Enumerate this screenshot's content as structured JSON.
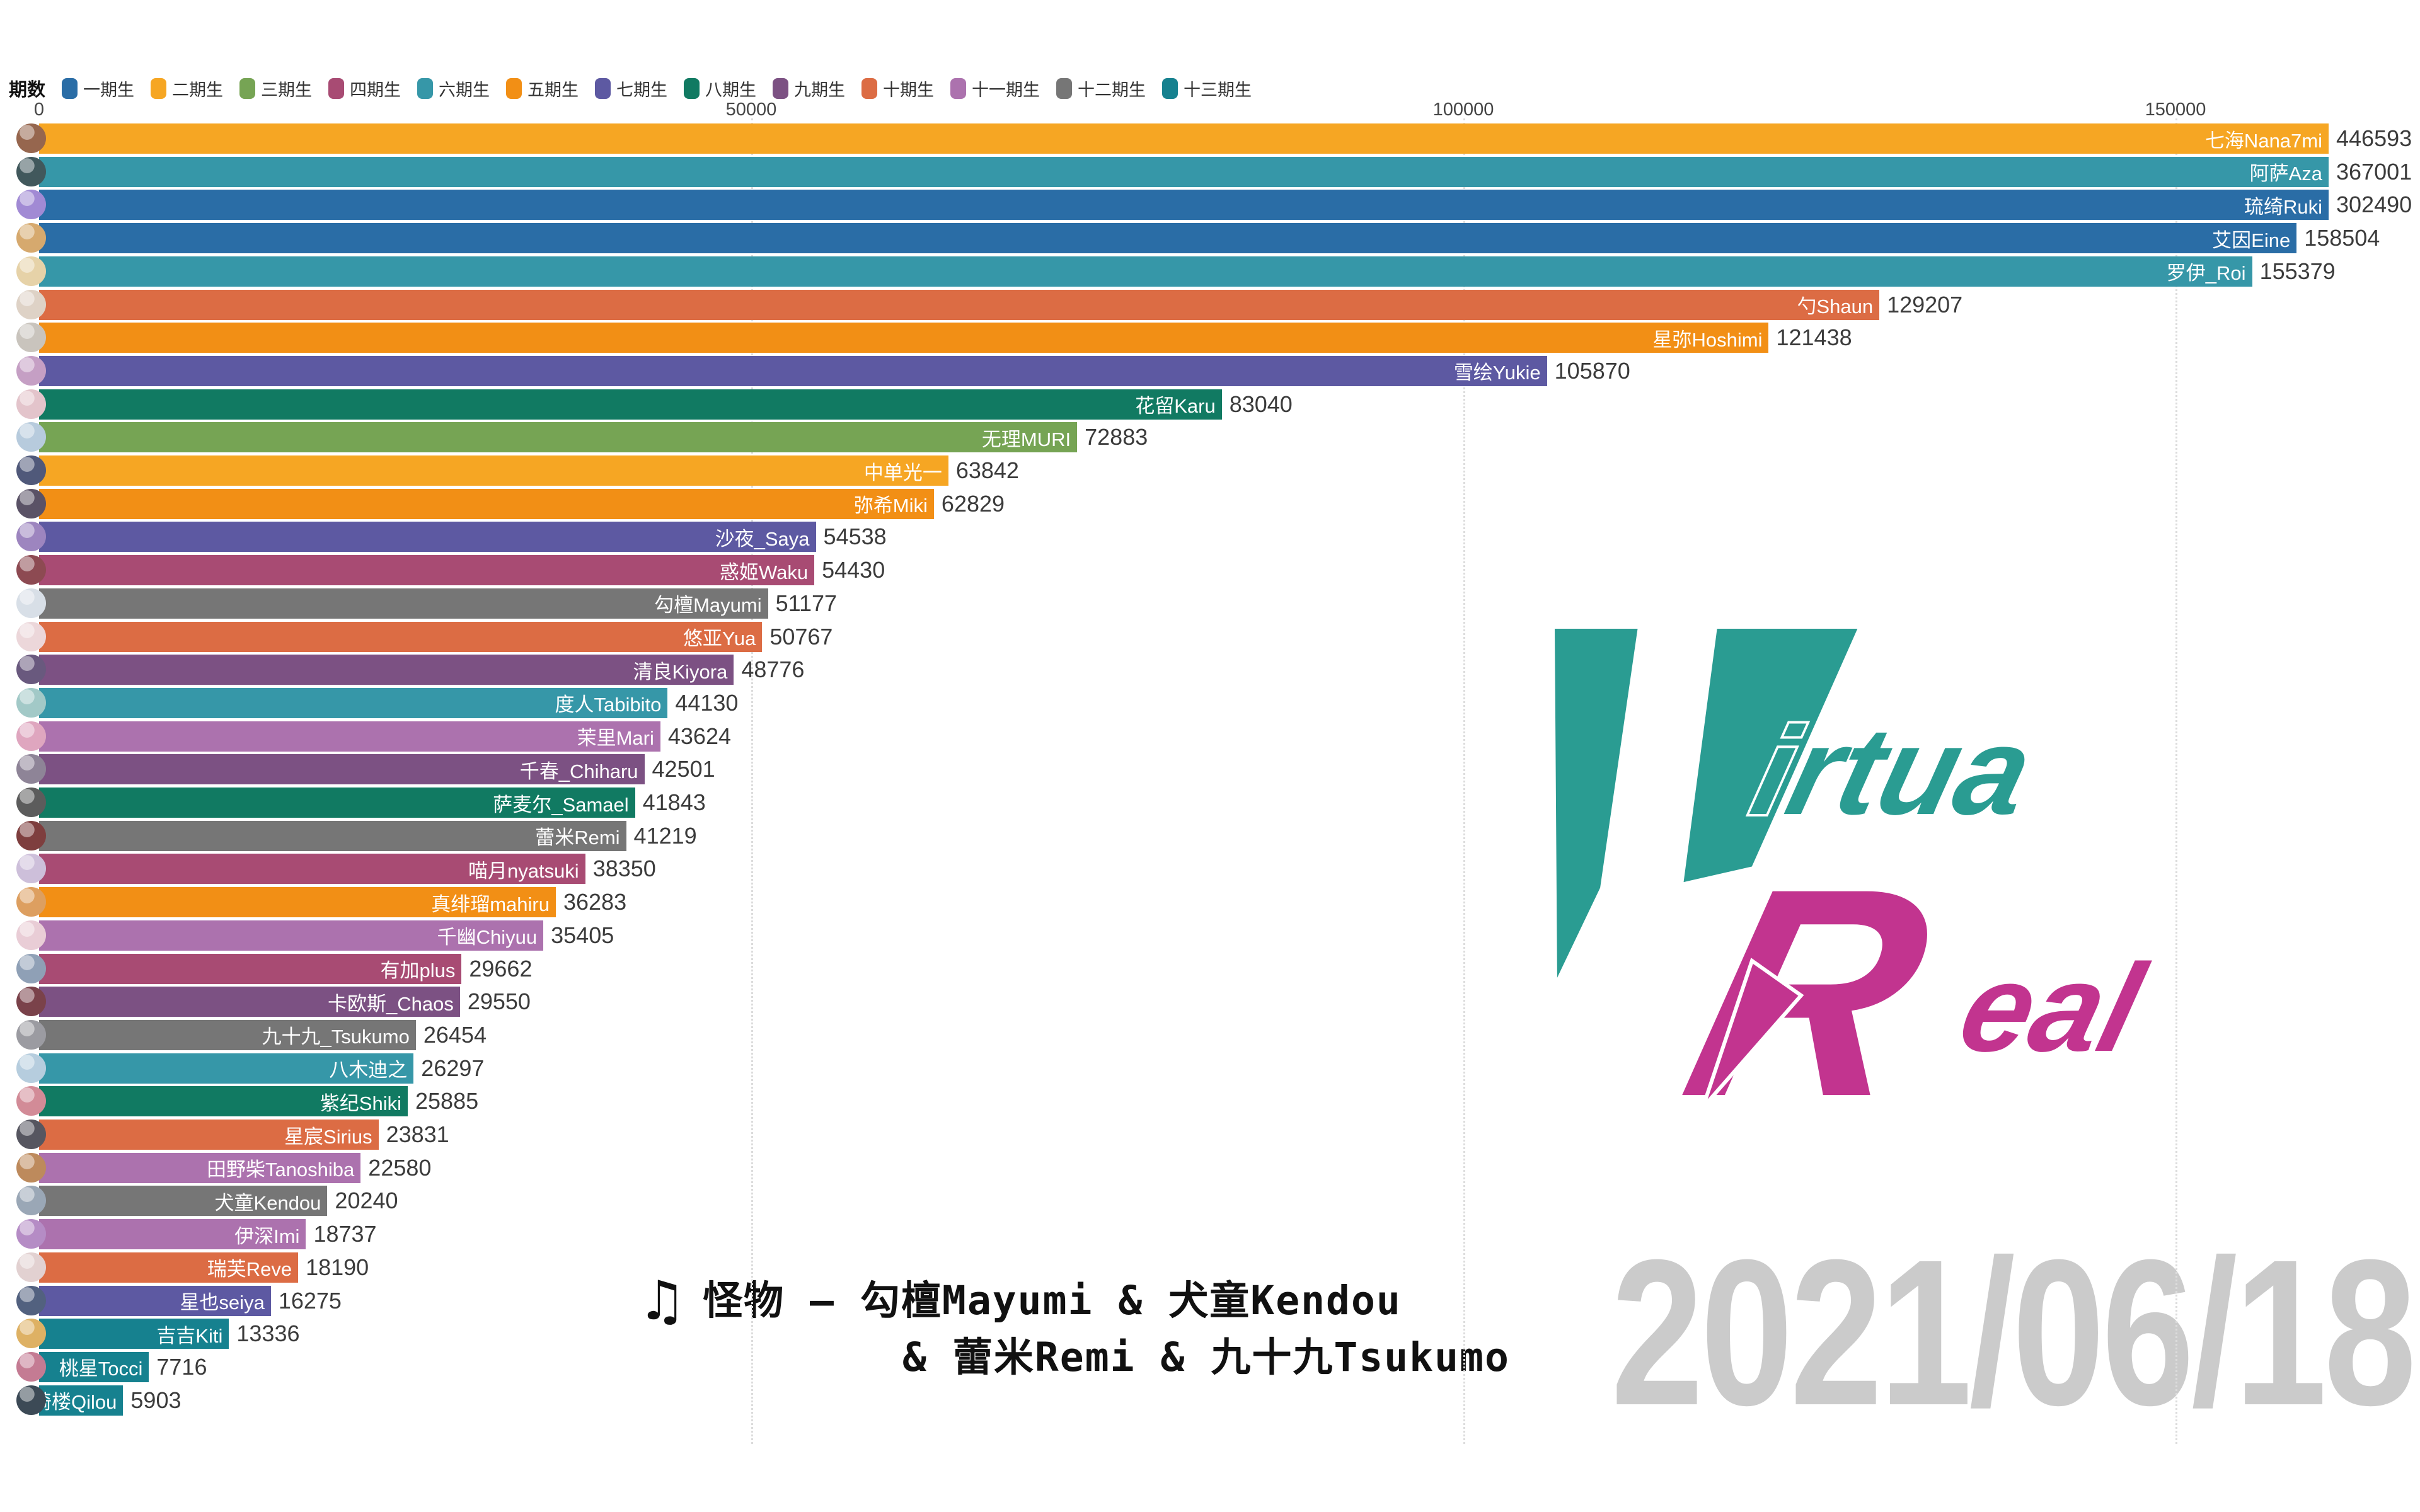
{
  "legend": {
    "title": "期数",
    "items": [
      {
        "label": "一期生",
        "color": "#2a6da6"
      },
      {
        "label": "二期生",
        "color": "#f6a623"
      },
      {
        "label": "三期生",
        "color": "#76a454"
      },
      {
        "label": "四期生",
        "color": "#a84b73"
      },
      {
        "label": "六期生",
        "color": "#3697a8"
      },
      {
        "label": "五期生",
        "color": "#f28f15"
      },
      {
        "label": "七期生",
        "color": "#5d59a2"
      },
      {
        "label": "八期生",
        "color": "#117a62"
      },
      {
        "label": "九期生",
        "color": "#7c5183"
      },
      {
        "label": "十期生",
        "color": "#dc6c44"
      },
      {
        "label": "十一期生",
        "color": "#ac72ae"
      },
      {
        "label": "十二期生",
        "color": "#767676"
      },
      {
        "label": "十三期生",
        "color": "#16818f"
      }
    ]
  },
  "axis": {
    "ticks": [
      {
        "value": 0,
        "label": "0"
      },
      {
        "value": 50000,
        "label": "50000"
      },
      {
        "value": 100000,
        "label": "100000"
      },
      {
        "value": 150000,
        "label": "150000"
      }
    ]
  },
  "chart_data": {
    "type": "bar",
    "orientation": "horizontal",
    "title": "",
    "xlim": [
      0,
      160000
    ],
    "grid": true,
    "legend_position": "top",
    "note_top_bars_clipped_at_right_edge": true,
    "entries": [
      {
        "rank": 1,
        "name": "七海Nana7mi",
        "value": 446593,
        "generation": "二期生",
        "color": "#f6a623",
        "avatar_color": "#96664e"
      },
      {
        "rank": 2,
        "name": "阿萨Aza",
        "value": 367001,
        "generation": "六期生",
        "color": "#3697a8",
        "avatar_color": "#41585c"
      },
      {
        "rank": 3,
        "name": "琉绮Ruki",
        "value": 302490,
        "generation": "一期生",
        "color": "#2a6da6",
        "avatar_color": "#a18ad4"
      },
      {
        "rank": 4,
        "name": "艾因Eine",
        "value": 158504,
        "generation": "一期生",
        "color": "#2a6da6",
        "avatar_color": "#d6a96e"
      },
      {
        "rank": 5,
        "name": "罗伊_Roi",
        "value": 155379,
        "generation": "六期生",
        "color": "#3697a8",
        "avatar_color": "#e6d2a8"
      },
      {
        "rank": 6,
        "name": "勺Shaun",
        "value": 129207,
        "generation": "十期生",
        "color": "#dc6c44",
        "avatar_color": "#ded2c6"
      },
      {
        "rank": 7,
        "name": "星弥Hoshimi",
        "value": 121438,
        "generation": "五期生",
        "color": "#f28f15",
        "avatar_color": "#c9c4bd"
      },
      {
        "rank": 8,
        "name": "雪绘Yukie",
        "value": 105870,
        "generation": "七期生",
        "color": "#5d59a2",
        "avatar_color": "#c59fc4"
      },
      {
        "rank": 9,
        "name": "花留Karu",
        "value": 83040,
        "generation": "八期生",
        "color": "#117a62",
        "avatar_color": "#e3c4cb"
      },
      {
        "rank": 10,
        "name": "无理MURI",
        "value": 72883,
        "generation": "三期生",
        "color": "#76a454",
        "avatar_color": "#b7cbdd"
      },
      {
        "rank": 11,
        "name": "中单光一",
        "value": 63842,
        "generation": "二期生",
        "color": "#f6a623",
        "avatar_color": "#50597a"
      },
      {
        "rank": 12,
        "name": "弥希Miki",
        "value": 62829,
        "generation": "五期生",
        "color": "#f28f15",
        "avatar_color": "#5a5266"
      },
      {
        "rank": 13,
        "name": "沙夜_Saya",
        "value": 54538,
        "generation": "七期生",
        "color": "#5d59a2",
        "avatar_color": "#9d85bf"
      },
      {
        "rank": 14,
        "name": "惑姬Waku",
        "value": 54430,
        "generation": "四期生",
        "color": "#a84b73",
        "avatar_color": "#8d4a52"
      },
      {
        "rank": 15,
        "name": "勾檀Mayumi",
        "value": 51177,
        "generation": "十二期生",
        "color": "#767676",
        "avatar_color": "#d8dfe7"
      },
      {
        "rank": 16,
        "name": "悠亚Yua",
        "value": 50767,
        "generation": "十期生",
        "color": "#dc6c44",
        "avatar_color": "#ecd7da"
      },
      {
        "rank": 17,
        "name": "清良Kiyora",
        "value": 48776,
        "generation": "九期生",
        "color": "#7c5183",
        "avatar_color": "#69597e"
      },
      {
        "rank": 18,
        "name": "度人Tabibito",
        "value": 44130,
        "generation": "六期生",
        "color": "#3697a8",
        "avatar_color": "#a2c9c7"
      },
      {
        "rank": 19,
        "name": "茉里Mari",
        "value": 43624,
        "generation": "十一期生",
        "color": "#ac72ae",
        "avatar_color": "#dfa6bf"
      },
      {
        "rank": 20,
        "name": "千春_Chiharu",
        "value": 42501,
        "generation": "九期生",
        "color": "#7c5183",
        "avatar_color": "#8e8497"
      },
      {
        "rank": 21,
        "name": "萨麦尔_Samael",
        "value": 41843,
        "generation": "八期生",
        "color": "#117a62",
        "avatar_color": "#5c5c5c"
      },
      {
        "rank": 22,
        "name": "蕾米Remi",
        "value": 41219,
        "generation": "十二期生",
        "color": "#767676",
        "avatar_color": "#7e3e3e"
      },
      {
        "rank": 23,
        "name": "喵月nyatsuki",
        "value": 38350,
        "generation": "四期生",
        "color": "#a84b73",
        "avatar_color": "#cdbfda"
      },
      {
        "rank": 24,
        "name": "真绯瑠mahiru",
        "value": 36283,
        "generation": "五期生",
        "color": "#f28f15",
        "avatar_color": "#dd9f60"
      },
      {
        "rank": 25,
        "name": "千幽Chiyuu",
        "value": 35405,
        "generation": "十一期生",
        "color": "#ac72ae",
        "avatar_color": "#e9cdd6"
      },
      {
        "rank": 26,
        "name": "有加plus",
        "value": 29662,
        "generation": "四期生",
        "color": "#a84b73",
        "avatar_color": "#8fa0b6"
      },
      {
        "rank": 27,
        "name": "卡欧斯_Chaos",
        "value": 29550,
        "generation": "九期生",
        "color": "#7c5183",
        "avatar_color": "#7a424a"
      },
      {
        "rank": 28,
        "name": "九十九_Tsukumo",
        "value": 26454,
        "generation": "十二期生",
        "color": "#767676",
        "avatar_color": "#9b9ba1"
      },
      {
        "rank": 29,
        "name": "八木迪之",
        "value": 26297,
        "generation": "六期生",
        "color": "#3697a8",
        "avatar_color": "#b6cdde"
      },
      {
        "rank": 30,
        "name": "紫纪Shiki",
        "value": 25885,
        "generation": "八期生",
        "color": "#117a62",
        "avatar_color": "#d28b97"
      },
      {
        "rank": 31,
        "name": "星宸Sirius",
        "value": 23831,
        "generation": "十期生",
        "color": "#dc6c44",
        "avatar_color": "#565660"
      },
      {
        "rank": 32,
        "name": "田野柴Tanoshiba",
        "value": 22580,
        "generation": "十一期生",
        "color": "#ac72ae",
        "avatar_color": "#bd8a5c"
      },
      {
        "rank": 33,
        "name": "犬童Kendou",
        "value": 20240,
        "generation": "十二期生",
        "color": "#767676",
        "avatar_color": "#9aa7b6"
      },
      {
        "rank": 34,
        "name": "伊深Imi",
        "value": 18737,
        "generation": "十一期生",
        "color": "#ac72ae",
        "avatar_color": "#b58cc5"
      },
      {
        "rank": 35,
        "name": "瑞芙Reve",
        "value": 18190,
        "generation": "十期生",
        "color": "#dc6c44",
        "avatar_color": "#e2d1d1"
      },
      {
        "rank": 36,
        "name": "星也seiya",
        "value": 16275,
        "generation": "七期生",
        "color": "#5d59a2",
        "avatar_color": "#52617f"
      },
      {
        "rank": 37,
        "name": "吉吉Kiti",
        "value": 13336,
        "generation": "十三期生",
        "color": "#16818f",
        "avatar_color": "#deb164"
      },
      {
        "rank": 38,
        "name": "桃星Tocci",
        "value": 7716,
        "generation": "十三期生",
        "color": "#16818f",
        "avatar_color": "#c47b93"
      },
      {
        "rank": 39,
        "name": "绮楼Qilou",
        "value": 5903,
        "generation": "十三期生",
        "color": "#16818f",
        "avatar_color": "#3c4a56"
      }
    ]
  },
  "music": {
    "icon": "♫",
    "line1": "怪物 – 勾檀Mayumi & 犬童Kendou",
    "line2": "& 蕾米Remi & 九十九Tsukumo"
  },
  "date": "2021/06/18",
  "logo": {
    "v": "V",
    "irtua": "irtua",
    "r": "R",
    "eal": "eal",
    "teal": "#2a9c92",
    "magenta": "#c2348f"
  }
}
